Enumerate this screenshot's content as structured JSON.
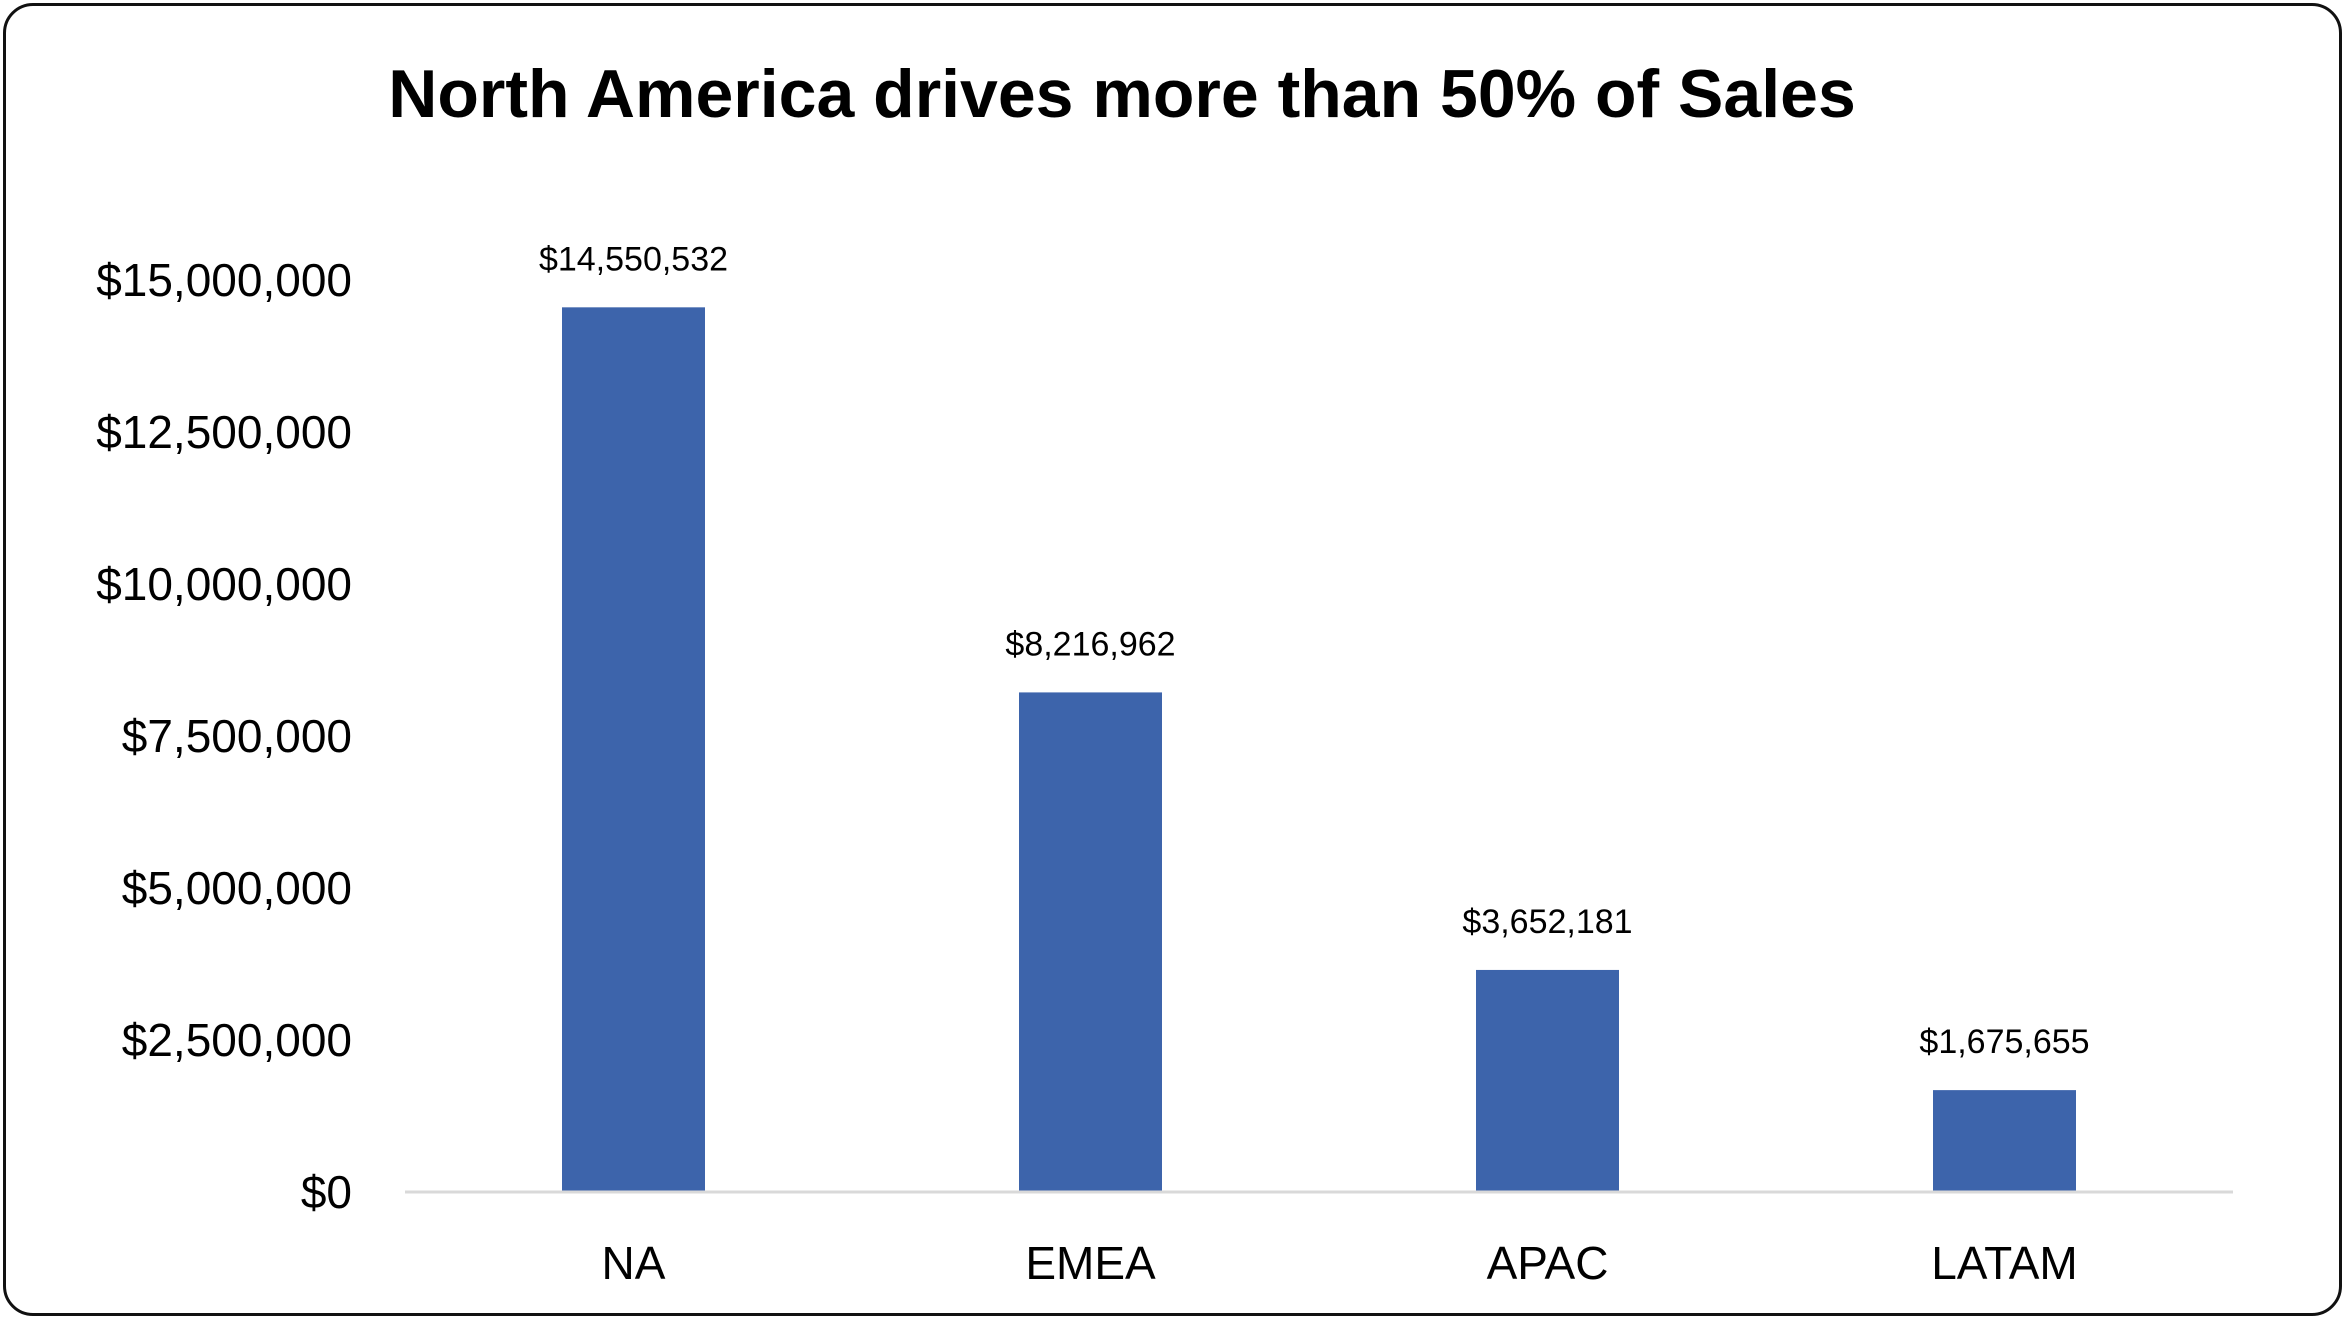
{
  "chart_data": {
    "type": "bar",
    "title": "North America drives more than 50% of Sales",
    "categories": [
      "NA",
      "EMEA",
      "APAC",
      "LATAM"
    ],
    "values": [
      14550532,
      8216962,
      3652181,
      1675655
    ],
    "data_labels": [
      "$14,550,532",
      "$8,216,962",
      "$3,652,181",
      "$1,675,655"
    ],
    "yticks": [
      0,
      2500000,
      5000000,
      7500000,
      10000000,
      12500000,
      15000000
    ],
    "ytick_labels": [
      "$0",
      "$2,500,000",
      "$5,000,000",
      "$7,500,000",
      "$10,000,000",
      "$12,500,000",
      "$15,000,000"
    ],
    "ylim": [
      0,
      15000000
    ],
    "xlabel": "",
    "ylabel": "",
    "grid": false,
    "legend": "none",
    "colors": {
      "bar": "#3d64ab",
      "axis_line": "#d9d9d9"
    }
  }
}
